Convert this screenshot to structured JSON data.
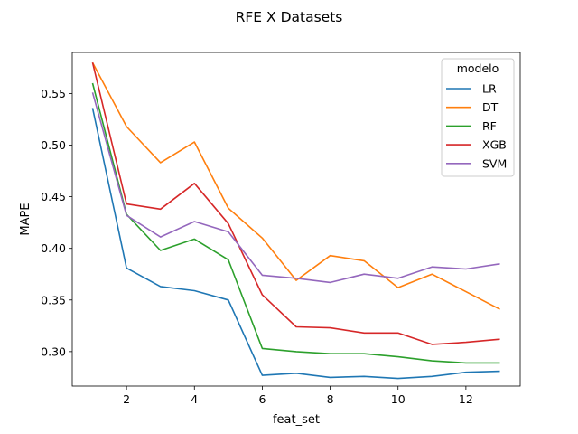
{
  "chart_data": {
    "type": "line",
    "title": "RFE X Datasets",
    "xlabel": "feat_set",
    "ylabel": "MAPE",
    "xlim": [
      0.4,
      13.6
    ],
    "ylim": [
      0.2666,
      0.5898
    ],
    "xticks": [
      2,
      4,
      6,
      8,
      10,
      12
    ],
    "yticks": [
      0.3,
      0.35,
      0.4,
      0.45,
      0.5,
      0.55
    ],
    "ytick_labels": [
      "0.30",
      "0.35",
      "0.40",
      "0.45",
      "0.50",
      "0.55"
    ],
    "grid": false,
    "legend": {
      "title": "modelo",
      "placement": "top-right"
    },
    "x": [
      1,
      2,
      3,
      4,
      5,
      6,
      7,
      8,
      9,
      10,
      11,
      12,
      13
    ],
    "series": [
      {
        "name": "LR",
        "color": "#1f77b4",
        "values": [
          0.536,
          0.381,
          0.363,
          0.359,
          0.35,
          0.277,
          0.279,
          0.275,
          0.276,
          0.274,
          0.276,
          0.28,
          0.281
        ]
      },
      {
        "name": "DT",
        "color": "#ff7f0e",
        "values": [
          0.58,
          0.518,
          0.483,
          0.503,
          0.439,
          0.41,
          0.369,
          0.393,
          0.388,
          0.362,
          0.375,
          0.358,
          0.341
        ]
      },
      {
        "name": "RF",
        "color": "#2ca02c",
        "values": [
          0.56,
          0.433,
          0.398,
          0.409,
          0.389,
          0.303,
          0.3,
          0.298,
          0.298,
          0.295,
          0.291,
          0.289,
          0.289
        ]
      },
      {
        "name": "XGB",
        "color": "#d62728",
        "values": [
          0.58,
          0.443,
          0.438,
          0.463,
          0.424,
          0.355,
          0.324,
          0.323,
          0.318,
          0.318,
          0.307,
          0.309,
          0.312
        ]
      },
      {
        "name": "SVM",
        "color": "#9467bd",
        "values": [
          0.551,
          0.432,
          0.411,
          0.426,
          0.416,
          0.374,
          0.371,
          0.367,
          0.375,
          0.371,
          0.382,
          0.38,
          0.385
        ]
      }
    ]
  }
}
